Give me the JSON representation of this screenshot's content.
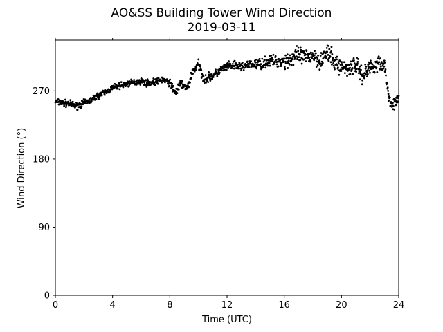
{
  "chart_data": {
    "type": "scatter",
    "title": "AO&SS Building Tower Wind Direction",
    "subtitle": "2019-03-11",
    "xlabel": "Time (UTC)",
    "ylabel": "Wind Direction (°)",
    "xlim": [
      0,
      24
    ],
    "ylim": [
      0,
      337
    ],
    "xticks": [
      0,
      4,
      8,
      12,
      16,
      20,
      24
    ],
    "yticks": [
      0,
      90,
      180,
      270
    ],
    "grid": false,
    "marker_color": "#000000",
    "series": [
      {
        "x": [
          0.0,
          0.5,
          1.0,
          1.5,
          2.0,
          2.5,
          3.0,
          3.5,
          4.0,
          4.5,
          5.0,
          5.5,
          6.0,
          6.5,
          7.0,
          7.5,
          8.0,
          8.4,
          8.8,
          9.2,
          9.6,
          10.0,
          10.4,
          10.8,
          11.2,
          11.6,
          12.0,
          12.5,
          13.0,
          13.5,
          14.0,
          14.5,
          15.0,
          15.5,
          16.0,
          16.5,
          17.0,
          17.5,
          18.0,
          18.5,
          19.0,
          19.5,
          20.0,
          20.5,
          21.0,
          21.5,
          22.0,
          22.5,
          23.0,
          23.3,
          23.6,
          24.0
        ],
        "y": [
          256,
          254,
          253,
          250,
          254,
          258,
          264,
          268,
          274,
          277,
          279,
          281,
          283,
          280,
          282,
          285,
          280,
          268,
          280,
          272,
          296,
          305,
          285,
          288,
          292,
          298,
          302,
          303,
          302,
          304,
          305,
          306,
          310,
          309,
          310,
          312,
          316,
          313,
          318,
          310,
          320,
          308,
          302,
          300,
          305,
          290,
          302,
          306,
          305,
          262,
          252,
          258
        ]
      }
    ]
  }
}
